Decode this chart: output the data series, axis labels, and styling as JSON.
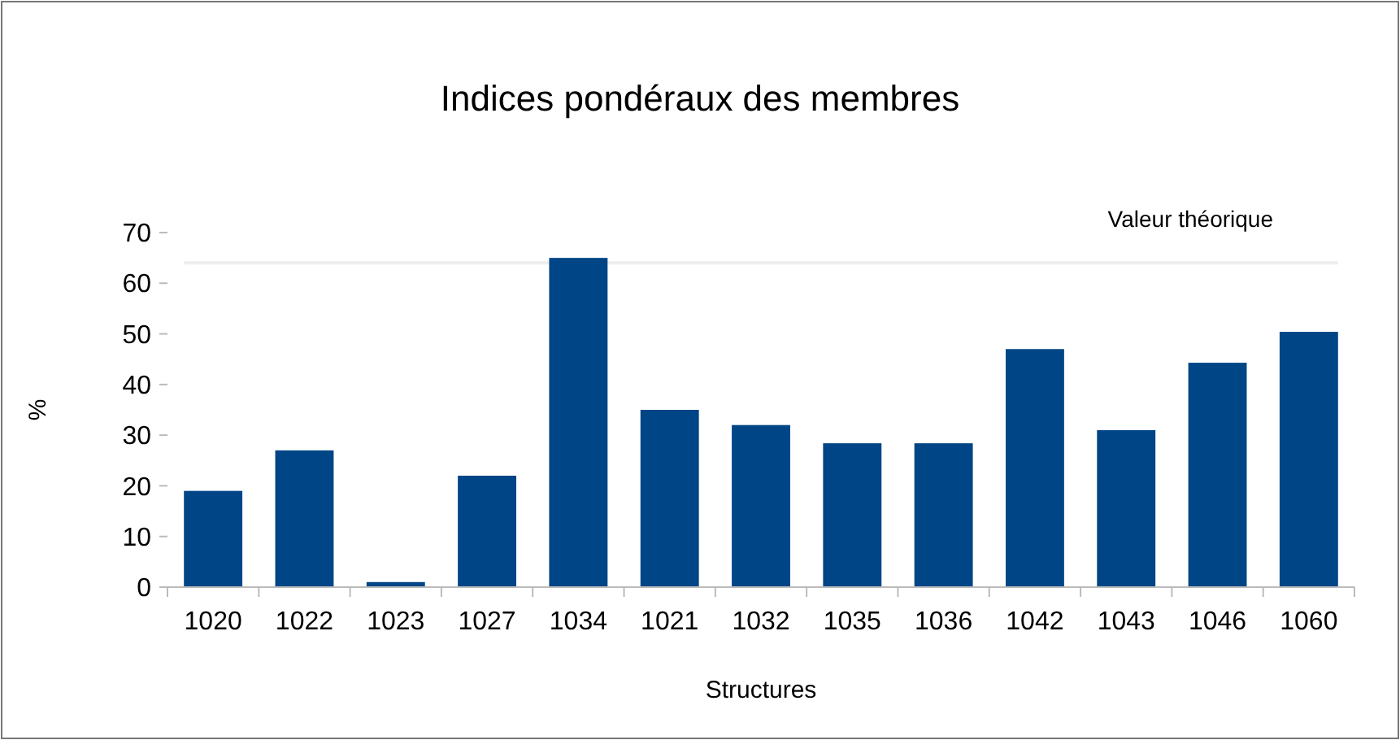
{
  "chart_data": {
    "type": "bar",
    "title": "Indices pondéraux des membres",
    "xlabel": "Structures",
    "ylabel": "%",
    "categories": [
      "1020",
      "1022",
      "1023",
      "1027",
      "1034",
      "1021",
      "1032",
      "1035",
      "1036",
      "1042",
      "1043",
      "1046",
      "1060"
    ],
    "values": [
      19,
      27,
      1,
      22,
      65,
      35,
      32,
      28.4,
      28.4,
      47,
      31,
      44.3,
      50.4
    ],
    "color": "#004586",
    "ylim": [
      0,
      70
    ],
    "yticks": [
      0,
      10,
      20,
      30,
      40,
      50,
      60,
      70
    ],
    "grid": false,
    "ref_lines": [
      {
        "axis": "y",
        "value": 64,
        "label": "Valeur théorique",
        "color": "#eeeeee"
      }
    ]
  }
}
